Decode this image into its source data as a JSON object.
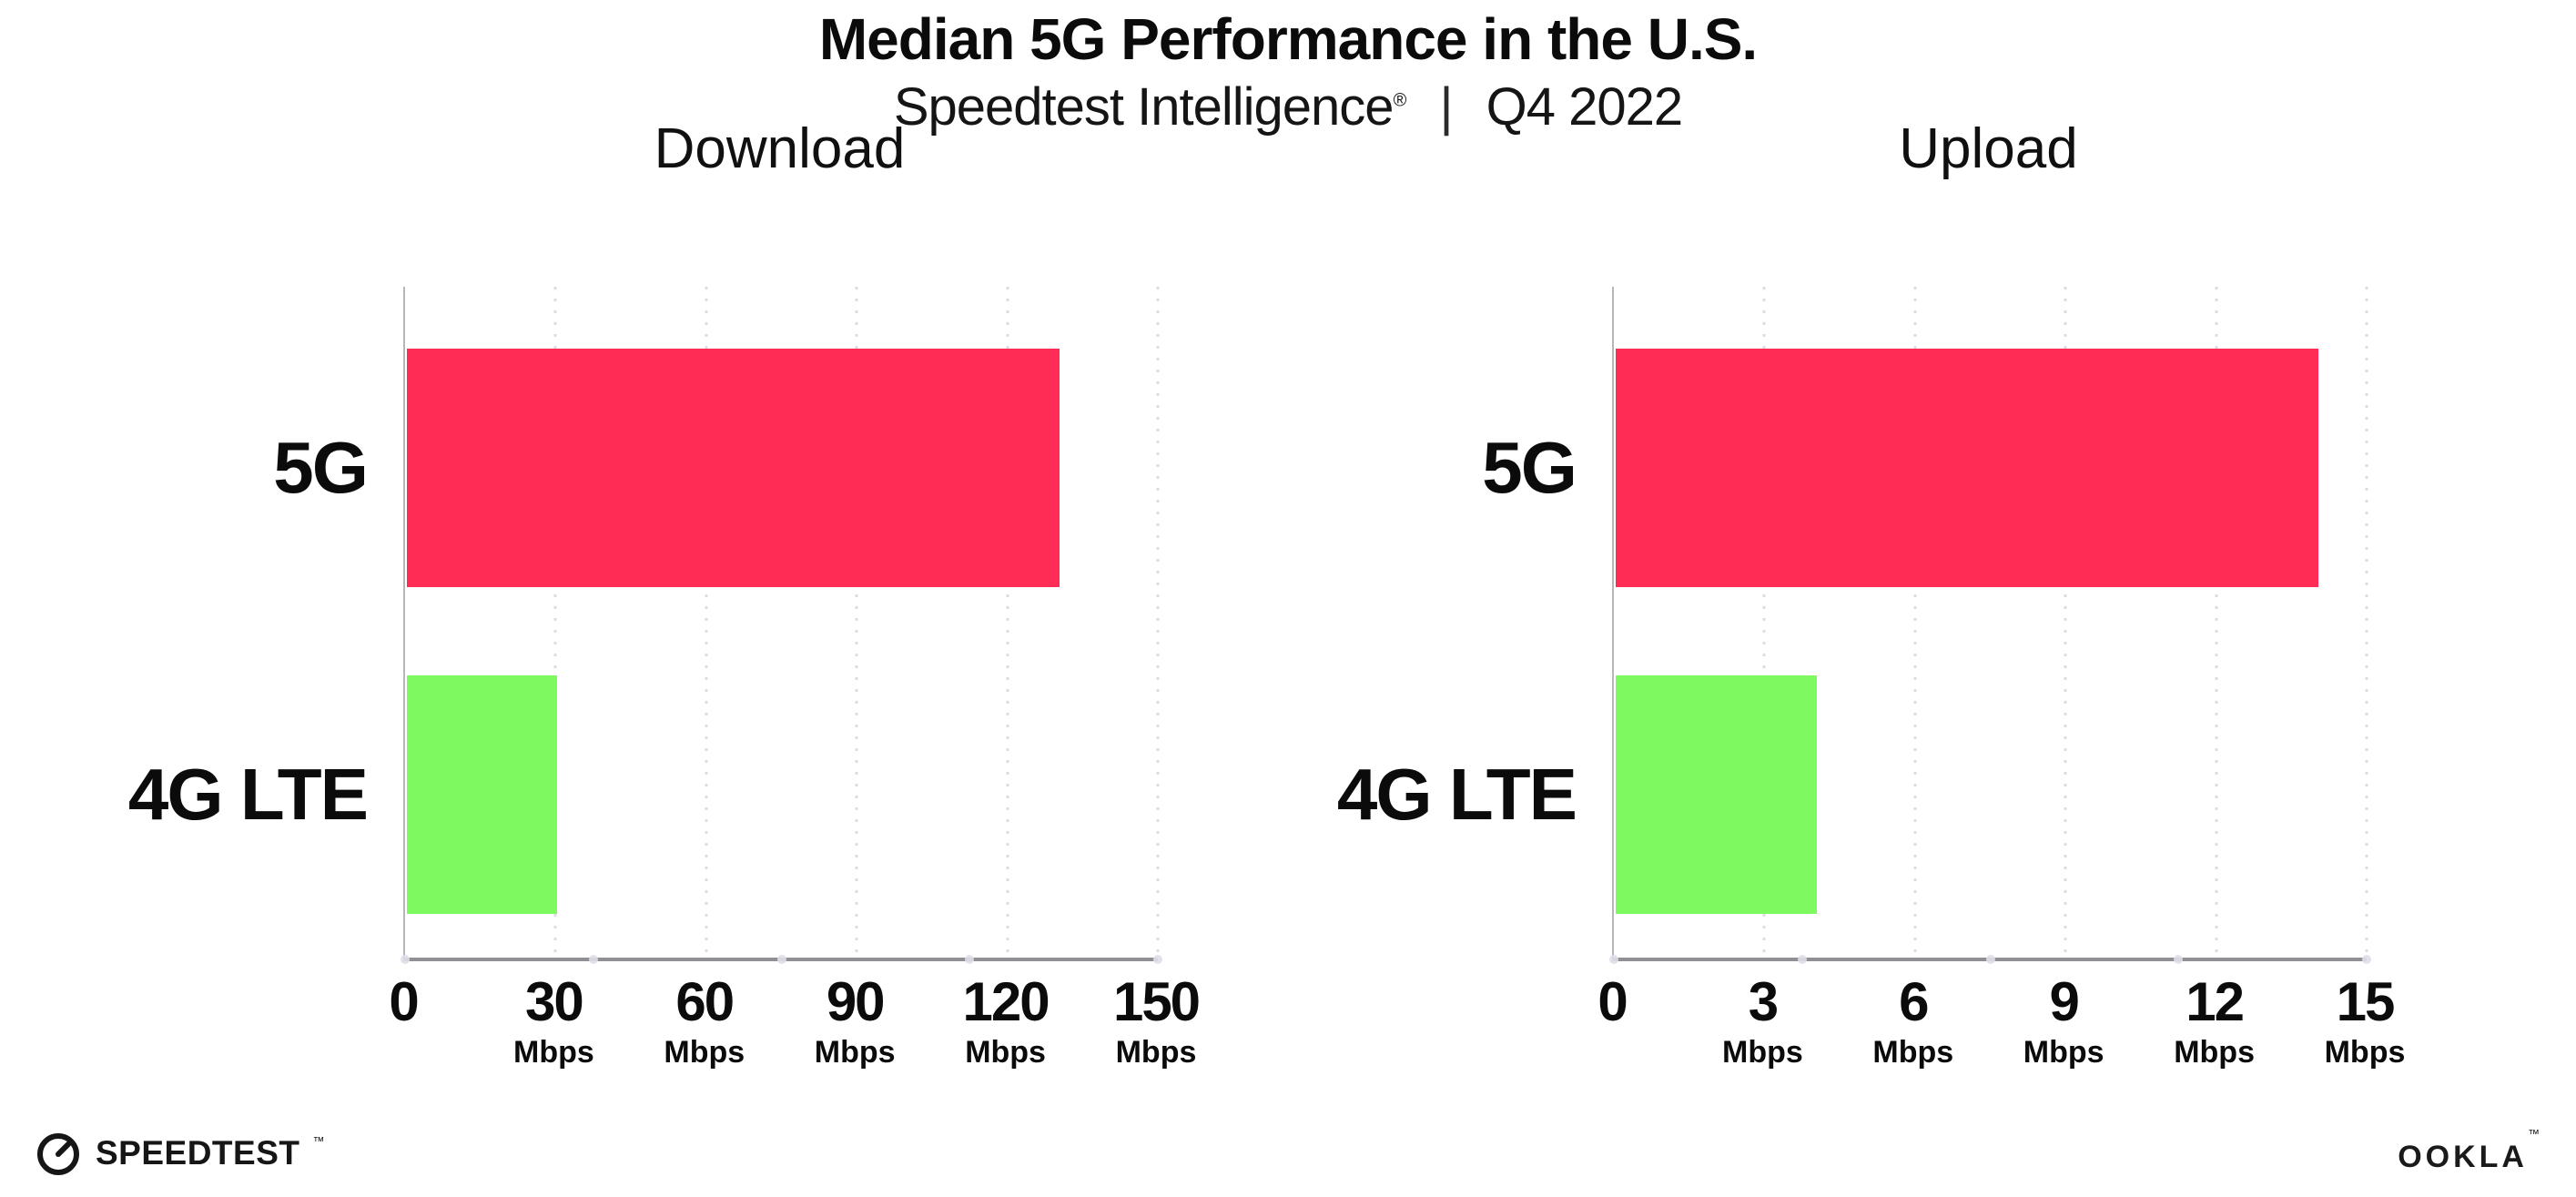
{
  "header": {
    "title": "Median 5G Performance in the U.S.",
    "subtitle_brand": "Speedtest Intelligence",
    "subtitle_reg": "®",
    "subtitle_separator": "|",
    "subtitle_period": "Q4 2022"
  },
  "colors": {
    "bar_5g": "#FF2D55",
    "bar_4g_lte": "#7FF960",
    "axis_line": "#8f8f94",
    "y_axis_line": "#b5b5bc",
    "gridline_dots": "#dcdce6",
    "text": "#0b0b0b"
  },
  "chart_data": [
    {
      "type": "bar",
      "orientation": "horizontal",
      "title": "Download",
      "categories": [
        "5G",
        "4G LTE"
      ],
      "values": [
        130,
        30
      ],
      "unit": "Mbps",
      "xlim": [
        0,
        150
      ],
      "x_ticks": [
        0,
        30,
        60,
        90,
        120,
        150
      ],
      "grid": "dotted-vertical-at-ticks",
      "legend": "none"
    },
    {
      "type": "bar",
      "orientation": "horizontal",
      "title": "Upload",
      "categories": [
        "5G",
        "4G LTE"
      ],
      "values": [
        14,
        4
      ],
      "unit": "Mbps",
      "xlim": [
        0,
        15
      ],
      "x_ticks": [
        0,
        3,
        6,
        9,
        12,
        15
      ],
      "grid": "dotted-vertical-at-ticks",
      "legend": "none"
    }
  ],
  "footer": {
    "speedtest_logo_text": "SPEEDTEST",
    "speedtest_trademark": "™",
    "ookla_logo_text": "OOKLA",
    "ookla_trademark": "™"
  }
}
